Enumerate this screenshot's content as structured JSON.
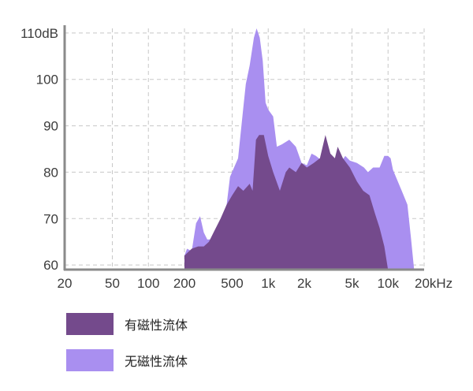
{
  "chart_data": {
    "type": "area",
    "x_scale": "log",
    "ylim": [
      59,
      111
    ],
    "xlim": [
      20,
      20000
    ],
    "x_ticks": [
      {
        "value": 20,
        "label": "20"
      },
      {
        "value": 50,
        "label": "50"
      },
      {
        "value": 100,
        "label": "100"
      },
      {
        "value": 200,
        "label": "200"
      },
      {
        "value": 500,
        "label": "500"
      },
      {
        "value": 1000,
        "label": "1k"
      },
      {
        "value": 2000,
        "label": "2k"
      },
      {
        "value": 5000,
        "label": "5k"
      },
      {
        "value": 10000,
        "label": "10k"
      },
      {
        "value": 20000,
        "label": "20kHz"
      }
    ],
    "y_ticks": [
      {
        "value": 110,
        "label": "110dB"
      },
      {
        "value": 100,
        "label": "100"
      },
      {
        "value": 90,
        "label": "90"
      },
      {
        "value": 80,
        "label": "80"
      },
      {
        "value": 70,
        "label": "70"
      },
      {
        "value": 60,
        "label": "60"
      }
    ],
    "grid": true,
    "legend_position": "bottom-left",
    "series": [
      {
        "name": "无磁性流体",
        "color": "#a98ff0",
        "points": [
          [
            200,
            62
          ],
          [
            210,
            63.5
          ],
          [
            230,
            63
          ],
          [
            250,
            69
          ],
          [
            270,
            70.5
          ],
          [
            290,
            67
          ],
          [
            310,
            65.5
          ],
          [
            330,
            65.5
          ],
          [
            370,
            67
          ],
          [
            410,
            70
          ],
          [
            450,
            73
          ],
          [
            480,
            79
          ],
          [
            560,
            83
          ],
          [
            620,
            94
          ],
          [
            650,
            99
          ],
          [
            700,
            103
          ],
          [
            760,
            109
          ],
          [
            800,
            111
          ],
          [
            850,
            109
          ],
          [
            900,
            104
          ],
          [
            950,
            95
          ],
          [
            1000,
            93.5
          ],
          [
            1100,
            92
          ],
          [
            1180,
            85.5
          ],
          [
            1300,
            86
          ],
          [
            1500,
            87
          ],
          [
            1700,
            85.5
          ],
          [
            1900,
            82
          ],
          [
            2100,
            81.5
          ],
          [
            2300,
            84
          ],
          [
            2500,
            83.5
          ],
          [
            2800,
            82.5
          ],
          [
            3000,
            82.5
          ],
          [
            3200,
            80
          ],
          [
            3500,
            82
          ],
          [
            4000,
            82
          ],
          [
            4400,
            83.5
          ],
          [
            4800,
            82.5
          ],
          [
            5500,
            82
          ],
          [
            6300,
            81
          ],
          [
            6800,
            80
          ],
          [
            7500,
            81
          ],
          [
            8500,
            81
          ],
          [
            9300,
            83.5
          ],
          [
            10000,
            83.5
          ],
          [
            10500,
            83
          ],
          [
            11000,
            80.5
          ],
          [
            13000,
            76
          ],
          [
            14500,
            73
          ],
          [
            15500,
            66
          ],
          [
            16500,
            59
          ]
        ]
      },
      {
        "name": "有磁性流体",
        "color": "#744a8c",
        "points": [
          [
            200,
            62
          ],
          [
            230,
            63.5
          ],
          [
            260,
            64
          ],
          [
            290,
            64
          ],
          [
            320,
            65
          ],
          [
            350,
            67
          ],
          [
            400,
            70
          ],
          [
            450,
            73
          ],
          [
            500,
            75
          ],
          [
            560,
            77
          ],
          [
            620,
            76
          ],
          [
            700,
            77.5
          ],
          [
            740,
            76
          ],
          [
            790,
            87
          ],
          [
            840,
            88
          ],
          [
            920,
            88
          ],
          [
            1000,
            83.5
          ],
          [
            1100,
            80
          ],
          [
            1250,
            76
          ],
          [
            1400,
            80
          ],
          [
            1500,
            81
          ],
          [
            1700,
            80
          ],
          [
            1900,
            82
          ],
          [
            2100,
            81
          ],
          [
            2400,
            82
          ],
          [
            2700,
            83
          ],
          [
            3000,
            88
          ],
          [
            3300,
            84
          ],
          [
            3600,
            83
          ],
          [
            3800,
            85.5
          ],
          [
            4200,
            83
          ],
          [
            4800,
            81
          ],
          [
            5500,
            78
          ],
          [
            6200,
            76
          ],
          [
            7000,
            75
          ],
          [
            7800,
            71
          ],
          [
            8500,
            68
          ],
          [
            9300,
            64
          ],
          [
            10000,
            59
          ]
        ]
      }
    ]
  }
}
